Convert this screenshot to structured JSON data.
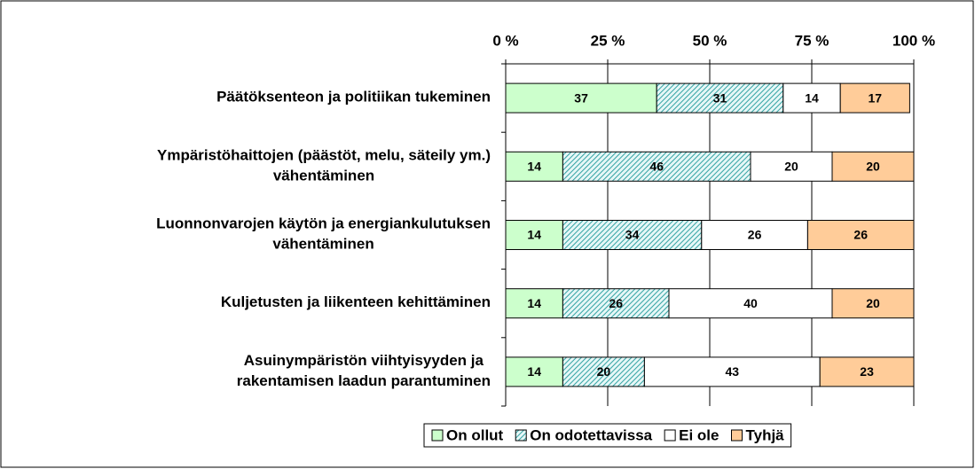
{
  "chart_data": {
    "type": "stacked-bar-horizontal",
    "categories": [
      [
        "Päätöksenteon ja politiikan tukeminen"
      ],
      [
        "Ympäristöhaittojen (päästöt, melu, säteily ym.)",
        "vähentäminen"
      ],
      [
        "Luonnonvarojen käytön ja energiankulutuksen",
        "vähentäminen"
      ],
      [
        "Kuljetusten ja liikenteen kehittäminen"
      ],
      [
        "Asuinympäristön viihtyisyyden ja",
        "rakentamisen laadun parantuminen"
      ]
    ],
    "series": [
      {
        "name": "On ollut",
        "color": "#ccffcc",
        "values": [
          37,
          14,
          14,
          14,
          14
        ]
      },
      {
        "name": "On odotettavissa",
        "color": "#66cccc",
        "pattern": "diagonal",
        "values": [
          31,
          46,
          34,
          26,
          20
        ]
      },
      {
        "name": "Ei ole",
        "color": "#ffffff",
        "values": [
          14,
          20,
          26,
          40,
          43
        ]
      },
      {
        "name": "Tyhjä",
        "color": "#ffcc99",
        "values": [
          17,
          20,
          26,
          20,
          23
        ]
      }
    ],
    "xlim": [
      0,
      100
    ],
    "xticks": [
      {
        "value": 0,
        "label": "0 %"
      },
      {
        "value": 25,
        "label": "25 %"
      },
      {
        "value": 50,
        "label": "50 %"
      },
      {
        "value": 75,
        "label": "75 %"
      },
      {
        "value": 100,
        "label": "100 %"
      }
    ],
    "grid": true,
    "legend": "bottom"
  }
}
